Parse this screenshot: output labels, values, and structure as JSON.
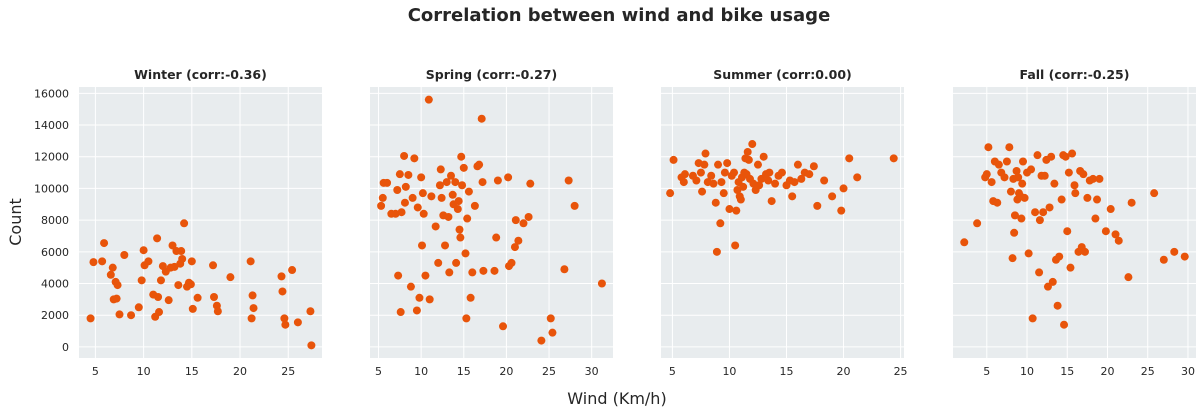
{
  "figure": {
    "title": "Correlation between wind and bike usage",
    "xlabel": "Wind (Km/h)",
    "ylabel": "Count",
    "marker_color": "#e8540a",
    "background_color": "#e8ecee",
    "grid": true,
    "shared_y": true
  },
  "chart_data": [
    {
      "type": "scatter",
      "title": "Winter (corr:-0.36)",
      "xlim": [
        3.3,
        28.5
      ],
      "ylim": [
        -700,
        16400
      ],
      "xticks": [
        5,
        10,
        15,
        20,
        25
      ],
      "yticks": [
        0,
        2000,
        4000,
        6000,
        8000,
        10000,
        12000,
        14000,
        16000
      ],
      "points": [
        [
          4.5,
          1800
        ],
        [
          4.8,
          5350
        ],
        [
          5.7,
          5400
        ],
        [
          5.9,
          6550
        ],
        [
          6.6,
          4550
        ],
        [
          6.8,
          5000
        ],
        [
          6.9,
          3000
        ],
        [
          7.1,
          4100
        ],
        [
          7.2,
          3050
        ],
        [
          7.3,
          3900
        ],
        [
          7.5,
          2050
        ],
        [
          8.0,
          5800
        ],
        [
          8.7,
          2000
        ],
        [
          9.5,
          2500
        ],
        [
          9.8,
          4200
        ],
        [
          10.0,
          6100
        ],
        [
          10.1,
          5150
        ],
        [
          10.5,
          5400
        ],
        [
          11.0,
          3300
        ],
        [
          11.2,
          1900
        ],
        [
          11.4,
          6850
        ],
        [
          11.5,
          3150
        ],
        [
          11.6,
          2200
        ],
        [
          11.8,
          4200
        ],
        [
          12.0,
          5100
        ],
        [
          12.3,
          4750
        ],
        [
          12.6,
          2950
        ],
        [
          12.8,
          5000
        ],
        [
          13.0,
          6400
        ],
        [
          13.2,
          5050
        ],
        [
          13.4,
          6050
        ],
        [
          13.6,
          3900
        ],
        [
          13.8,
          5250
        ],
        [
          13.9,
          6050
        ],
        [
          14.0,
          5550
        ],
        [
          14.2,
          7800
        ],
        [
          14.5,
          3800
        ],
        [
          14.7,
          4050
        ],
        [
          14.9,
          3950
        ],
        [
          15.0,
          5400
        ],
        [
          15.1,
          2400
        ],
        [
          15.6,
          3100
        ],
        [
          17.2,
          5150
        ],
        [
          17.3,
          3150
        ],
        [
          17.6,
          2600
        ],
        [
          17.7,
          2250
        ],
        [
          19.0,
          4400
        ],
        [
          21.1,
          5400
        ],
        [
          21.2,
          1800
        ],
        [
          21.3,
          3250
        ],
        [
          21.4,
          2450
        ],
        [
          24.3,
          4450
        ],
        [
          24.4,
          3500
        ],
        [
          24.6,
          1800
        ],
        [
          24.7,
          1400
        ],
        [
          25.4,
          4850
        ],
        [
          26.0,
          1550
        ],
        [
          27.3,
          2250
        ],
        [
          27.4,
          100
        ]
      ]
    },
    {
      "type": "scatter",
      "title": "Spring (corr:-0.27)",
      "xlim": [
        4.0,
        32.5
      ],
      "ylim": [
        -700,
        16400
      ],
      "xticks": [
        5,
        10,
        15,
        20,
        25,
        30
      ],
      "points": [
        [
          5.3,
          8900
        ],
        [
          5.5,
          9400
        ],
        [
          5.6,
          10350
        ],
        [
          6.0,
          10350
        ],
        [
          6.5,
          8400
        ],
        [
          7.0,
          8400
        ],
        [
          7.2,
          9900
        ],
        [
          7.3,
          4500
        ],
        [
          7.5,
          10900
        ],
        [
          7.6,
          2200
        ],
        [
          7.7,
          8500
        ],
        [
          8.0,
          12050
        ],
        [
          8.1,
          9100
        ],
        [
          8.2,
          10100
        ],
        [
          8.5,
          10850
        ],
        [
          8.8,
          3800
        ],
        [
          9.0,
          9400
        ],
        [
          9.2,
          11900
        ],
        [
          9.5,
          2300
        ],
        [
          9.6,
          8800
        ],
        [
          9.8,
          3100
        ],
        [
          10.0,
          10700
        ],
        [
          10.1,
          6400
        ],
        [
          10.2,
          9700
        ],
        [
          10.3,
          8400
        ],
        [
          10.5,
          4500
        ],
        [
          10.9,
          15600
        ],
        [
          11.0,
          3000
        ],
        [
          11.2,
          9500
        ],
        [
          11.7,
          7600
        ],
        [
          12.0,
          5300
        ],
        [
          12.2,
          10200
        ],
        [
          12.3,
          11200
        ],
        [
          12.4,
          9400
        ],
        [
          12.6,
          8300
        ],
        [
          12.8,
          6400
        ],
        [
          13.0,
          10400
        ],
        [
          13.2,
          8200
        ],
        [
          13.3,
          4700
        ],
        [
          13.5,
          10800
        ],
        [
          13.7,
          9600
        ],
        [
          13.8,
          9000
        ],
        [
          14.0,
          10400
        ],
        [
          14.1,
          5300
        ],
        [
          14.3,
          8700
        ],
        [
          14.4,
          9200
        ],
        [
          14.5,
          7400
        ],
        [
          14.6,
          6900
        ],
        [
          14.7,
          12000
        ],
        [
          14.8,
          10200
        ],
        [
          15.0,
          11300
        ],
        [
          15.2,
          5900
        ],
        [
          15.3,
          1800
        ],
        [
          15.4,
          8100
        ],
        [
          15.6,
          9800
        ],
        [
          15.8,
          3100
        ],
        [
          16.0,
          4700
        ],
        [
          16.3,
          8900
        ],
        [
          16.6,
          11400
        ],
        [
          16.8,
          11500
        ],
        [
          17.1,
          14400
        ],
        [
          17.2,
          10400
        ],
        [
          17.3,
          4800
        ],
        [
          18.6,
          4800
        ],
        [
          18.8,
          6900
        ],
        [
          19.0,
          10500
        ],
        [
          19.6,
          1300
        ],
        [
          20.2,
          10700
        ],
        [
          20.3,
          5100
        ],
        [
          20.6,
          5300
        ],
        [
          21.0,
          6300
        ],
        [
          21.1,
          8000
        ],
        [
          21.4,
          6700
        ],
        [
          22.0,
          7800
        ],
        [
          22.6,
          8200
        ],
        [
          22.8,
          10300
        ],
        [
          24.1,
          400
        ],
        [
          25.2,
          1800
        ],
        [
          25.4,
          900
        ],
        [
          26.8,
          4900
        ],
        [
          27.3,
          10500
        ],
        [
          28.0,
          8900
        ],
        [
          31.2,
          4000
        ]
      ]
    },
    {
      "type": "scatter",
      "title": "Summer (corr:0.00)",
      "xlim": [
        4.0,
        25.3
      ],
      "ylim": [
        -700,
        16400
      ],
      "xticks": [
        5,
        10,
        15,
        20,
        25
      ],
      "points": [
        [
          4.8,
          9700
        ],
        [
          5.1,
          11800
        ],
        [
          5.8,
          10700
        ],
        [
          6.0,
          10400
        ],
        [
          6.1,
          10900
        ],
        [
          6.8,
          10800
        ],
        [
          7.1,
          10500
        ],
        [
          7.3,
          11600
        ],
        [
          7.5,
          11000
        ],
        [
          7.6,
          9800
        ],
        [
          7.8,
          11500
        ],
        [
          7.9,
          12200
        ],
        [
          8.1,
          10400
        ],
        [
          8.4,
          10800
        ],
        [
          8.6,
          10300
        ],
        [
          8.8,
          9100
        ],
        [
          8.9,
          6000
        ],
        [
          9.0,
          11500
        ],
        [
          9.2,
          7800
        ],
        [
          9.3,
          10400
        ],
        [
          9.5,
          9700
        ],
        [
          9.6,
          11000
        ],
        [
          9.8,
          11600
        ],
        [
          10.0,
          8700
        ],
        [
          10.2,
          10800
        ],
        [
          10.4,
          11000
        ],
        [
          10.5,
          6400
        ],
        [
          10.6,
          8600
        ],
        [
          10.7,
          9900
        ],
        [
          10.8,
          10400
        ],
        [
          10.9,
          9500
        ],
        [
          11.0,
          9300
        ],
        [
          11.1,
          10700
        ],
        [
          11.2,
          10100
        ],
        [
          11.3,
          11000
        ],
        [
          11.4,
          11900
        ],
        [
          11.5,
          10900
        ],
        [
          11.6,
          12300
        ],
        [
          11.7,
          11800
        ],
        [
          11.8,
          10600
        ],
        [
          12.0,
          12800
        ],
        [
          12.1,
          10300
        ],
        [
          12.3,
          9900
        ],
        [
          12.5,
          11500
        ],
        [
          12.6,
          10200
        ],
        [
          12.8,
          10600
        ],
        [
          13.0,
          12000
        ],
        [
          13.2,
          10900
        ],
        [
          13.4,
          10500
        ],
        [
          13.5,
          11000
        ],
        [
          13.7,
          9200
        ],
        [
          14.0,
          10300
        ],
        [
          14.3,
          10800
        ],
        [
          14.6,
          11000
        ],
        [
          15.0,
          10200
        ],
        [
          15.3,
          10500
        ],
        [
          15.5,
          9500
        ],
        [
          15.7,
          10400
        ],
        [
          16.0,
          11500
        ],
        [
          16.3,
          10600
        ],
        [
          16.6,
          11000
        ],
        [
          17.0,
          10900
        ],
        [
          17.4,
          11400
        ],
        [
          17.7,
          8900
        ],
        [
          18.3,
          10500
        ],
        [
          19.0,
          9500
        ],
        [
          19.8,
          8600
        ],
        [
          20.0,
          10000
        ],
        [
          20.5,
          11900
        ],
        [
          21.2,
          10700
        ],
        [
          24.4,
          11900
        ]
      ]
    },
    {
      "type": "scatter",
      "title": "Fall (corr:-0.25)",
      "xlim": [
        0.8,
        31.0
      ],
      "ylim": [
        -700,
        16400
      ],
      "xticks": [
        5,
        10,
        15,
        20,
        25,
        30
      ],
      "points": [
        [
          2.2,
          6600
        ],
        [
          3.8,
          7800
        ],
        [
          4.8,
          10700
        ],
        [
          5.0,
          10900
        ],
        [
          5.2,
          12600
        ],
        [
          5.6,
          10400
        ],
        [
          5.8,
          9200
        ],
        [
          6.0,
          11700
        ],
        [
          6.3,
          9100
        ],
        [
          6.5,
          11500
        ],
        [
          6.8,
          11000
        ],
        [
          7.2,
          10700
        ],
        [
          7.5,
          11700
        ],
        [
          7.8,
          12600
        ],
        [
          8.0,
          9800
        ],
        [
          8.2,
          5600
        ],
        [
          8.3,
          10600
        ],
        [
          8.4,
          7200
        ],
        [
          8.5,
          8300
        ],
        [
          8.7,
          11100
        ],
        [
          8.8,
          9300
        ],
        [
          8.9,
          10700
        ],
        [
          9.0,
          9700
        ],
        [
          9.2,
          9500
        ],
        [
          9.3,
          8100
        ],
        [
          9.4,
          10300
        ],
        [
          9.5,
          11700
        ],
        [
          9.7,
          9400
        ],
        [
          10.0,
          11000
        ],
        [
          10.2,
          5900
        ],
        [
          10.5,
          11200
        ],
        [
          10.7,
          1800
        ],
        [
          11.0,
          8500
        ],
        [
          11.3,
          12100
        ],
        [
          11.5,
          4700
        ],
        [
          11.6,
          8000
        ],
        [
          11.8,
          10800
        ],
        [
          12.0,
          8500
        ],
        [
          12.2,
          10800
        ],
        [
          12.4,
          11800
        ],
        [
          12.6,
          3800
        ],
        [
          12.8,
          8800
        ],
        [
          13.0,
          12000
        ],
        [
          13.2,
          4100
        ],
        [
          13.4,
          10300
        ],
        [
          13.6,
          5500
        ],
        [
          13.8,
          2600
        ],
        [
          14.0,
          5700
        ],
        [
          14.3,
          9300
        ],
        [
          14.5,
          12100
        ],
        [
          14.6,
          1400
        ],
        [
          14.8,
          12000
        ],
        [
          15.0,
          7300
        ],
        [
          15.2,
          11000
        ],
        [
          15.4,
          5000
        ],
        [
          15.6,
          12200
        ],
        [
          15.9,
          10200
        ],
        [
          16.0,
          9700
        ],
        [
          16.4,
          6000
        ],
        [
          16.6,
          11100
        ],
        [
          16.8,
          6300
        ],
        [
          17.0,
          10900
        ],
        [
          17.2,
          6000
        ],
        [
          17.5,
          9400
        ],
        [
          17.8,
          10500
        ],
        [
          18.2,
          10600
        ],
        [
          18.5,
          8100
        ],
        [
          18.7,
          9300
        ],
        [
          19.0,
          10600
        ],
        [
          19.8,
          7300
        ],
        [
          20.4,
          8700
        ],
        [
          21.0,
          7100
        ],
        [
          21.4,
          6700
        ],
        [
          22.6,
          4400
        ],
        [
          23.0,
          9100
        ],
        [
          25.8,
          9700
        ],
        [
          27.0,
          5500
        ],
        [
          28.3,
          6000
        ],
        [
          29.6,
          5700
        ]
      ]
    }
  ]
}
